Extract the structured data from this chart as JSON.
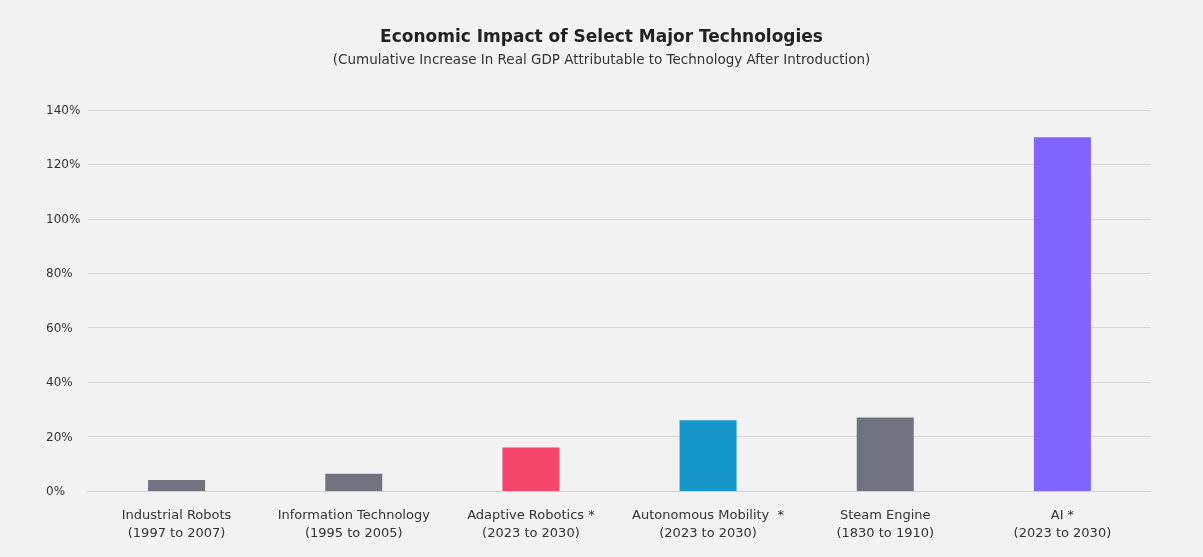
{
  "chart_data": {
    "type": "bar",
    "title": "Economic Impact of Select Major Technologies",
    "subtitle": "(Cumulative Increase In Real GDP Attributable to Technology After Introduction)",
    "categories": [
      "Industrial Robots\n(1997 to 2007)",
      "Information Technology\n(1995 to 2005)",
      "Adaptive Robotics *\n(2023 to 2030)",
      "Autonomous Mobility  *\n(2023 to 2030)",
      "Steam Engine\n(1830 to 1910)",
      "AI *\n(2023 to 2030)"
    ],
    "values": [
      4,
      6.3,
      16,
      26,
      27,
      130
    ],
    "colors": [
      "#70737f",
      "#70737f",
      "#f5476b",
      "#1596c9",
      "#70737f",
      "#8264ff"
    ],
    "ylim": [
      0,
      140
    ],
    "yticks": [
      {
        "value": 0,
        "label": "0%"
      },
      {
        "value": 20,
        "label": "20%"
      },
      {
        "value": 40,
        "label": "40%"
      },
      {
        "value": 60,
        "label": "60%"
      },
      {
        "value": 80,
        "label": "80%"
      },
      {
        "value": 100,
        "label": "100%"
      },
      {
        "value": 120,
        "label": "120%"
      },
      {
        "value": 140,
        "label": "140%"
      }
    ],
    "grid": "y"
  }
}
